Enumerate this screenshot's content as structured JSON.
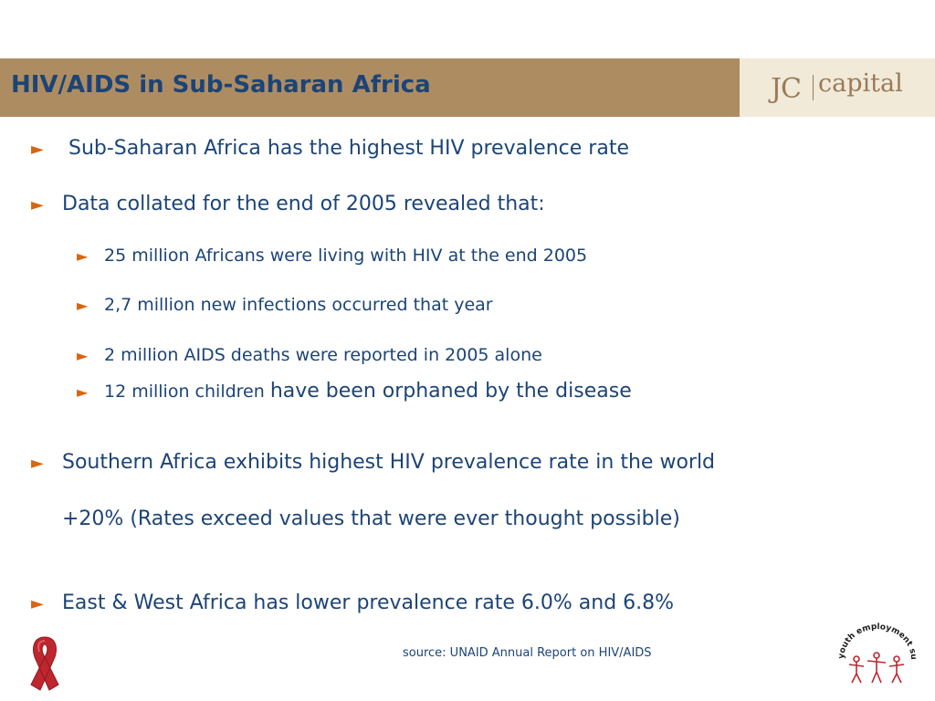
{
  "header": {
    "title": "HIV/AIDS in Sub-Saharan Africa",
    "logo": {
      "left": "JC",
      "right": "capital"
    }
  },
  "bullets": {
    "b1": " Sub-Saharan Africa has the highest HIV prevalence rate",
    "b2": "Data collated for the end of 2005 revealed that:",
    "sub1": "25 million Africans were living with HIV at the end 2005",
    "sub2": "2,7 million new infections occurred that year",
    "sub3": "2 million AIDS deaths were reported in 2005 alone",
    "sub4_start": "12 million children ",
    "sub4_end": "have been orphaned by the disease",
    "b3_line1": "Southern Africa exhibits highest HIV prevalence rate in the world",
    "b3_line2": "+20% (Rates exceed values that were ever thought possible)",
    "b4": "East & West Africa has lower prevalence rate 6.0% and 6.8%"
  },
  "footer": {
    "source": "source: UNAID Annual Report on HIV/AIDS",
    "ribbon_icon": "red-ribbon-icon",
    "summit_logo": {
      "text": "youth employment summit"
    }
  },
  "colors": {
    "title_bar": "#ae8c62",
    "logo_bg": "#f1ead9",
    "text": "#1c4476",
    "arrow": "#d9650f",
    "ribbon": "#c0262d"
  }
}
